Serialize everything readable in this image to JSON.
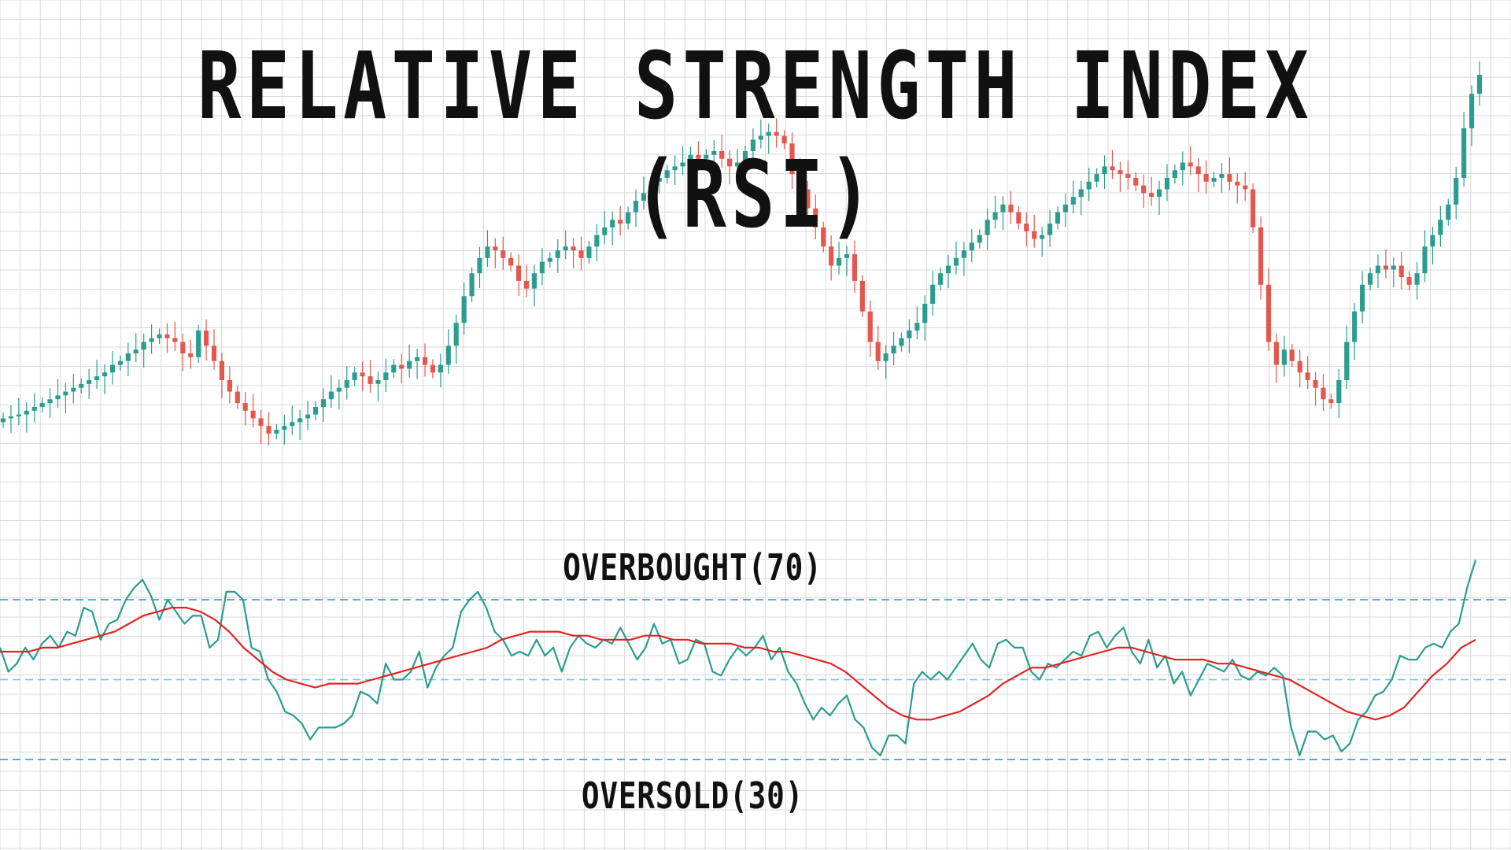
{
  "title": "RELATIVE STRENGTH INDEX (RSI)",
  "labels": {
    "overbought": "OVERBOUGHT(70)",
    "oversold": "OVERSOLD(30)"
  },
  "colors": {
    "background": "#ffffff",
    "grid": "#d9d9d9",
    "bullish": "#2a9d8f",
    "bearish": "#e4574f",
    "rsi_line": "#2a9d8f",
    "rsi_ma_line": "#e02424",
    "band_line": "#3aa6c9",
    "mid_line": "#7cc9e3"
  },
  "chart_data": [
    {
      "type": "candlestick",
      "title": "",
      "price_range": [
        0,
        100
      ],
      "closes": [
        10,
        10.5,
        11,
        12,
        13,
        14,
        15,
        16,
        17,
        18,
        19,
        20,
        21,
        22,
        24,
        25,
        27,
        28,
        30,
        31,
        32,
        31,
        30,
        27,
        26,
        33,
        29,
        25,
        20,
        17,
        14,
        12,
        10,
        8,
        6,
        7,
        8,
        9,
        10,
        11,
        13,
        15,
        17,
        18,
        20,
        22,
        21,
        19,
        20,
        22,
        24,
        23,
        25,
        26,
        24,
        22,
        24,
        29,
        35,
        42,
        48,
        52,
        55,
        54,
        52,
        50,
        46,
        44,
        48,
        51,
        52,
        54,
        55,
        54,
        52,
        55,
        58,
        60,
        62,
        61,
        64,
        67,
        69,
        72,
        73,
        75,
        76,
        77,
        79,
        78,
        79,
        80,
        78,
        76,
        77,
        80,
        83,
        84,
        85,
        84,
        82,
        74,
        70,
        65,
        60,
        55,
        50,
        52,
        53,
        46,
        38,
        30,
        25,
        27,
        29,
        31,
        33,
        35,
        40,
        45,
        48,
        50,
        52,
        54,
        56,
        58,
        62,
        64,
        66,
        64,
        61,
        59,
        57,
        58,
        61,
        64,
        66,
        68,
        70,
        72,
        74,
        76,
        75,
        74,
        73,
        71,
        69,
        68,
        70,
        73,
        75,
        77,
        76,
        74,
        72,
        73,
        74,
        72,
        71,
        70,
        60,
        45,
        30,
        24,
        28,
        25,
        22,
        20,
        18,
        15,
        14,
        20,
        30,
        38,
        45,
        48,
        50,
        49,
        50,
        47,
        45,
        48,
        55,
        58,
        62,
        66,
        73,
        86,
        95,
        100
      ],
      "xlabel": "",
      "ylabel": ""
    },
    {
      "type": "line",
      "title": "",
      "ylim": [
        0,
        100
      ],
      "reference_lines": [
        70,
        50,
        30
      ],
      "series": [
        {
          "values": [
            58,
            52,
            54,
            58,
            55,
            59,
            61,
            58,
            62,
            61,
            68,
            67,
            60,
            64,
            65,
            70,
            73,
            75,
            71,
            65,
            70,
            67,
            64,
            66,
            66,
            58,
            60,
            72,
            72,
            70,
            58,
            57,
            50,
            47,
            42,
            41,
            39,
            35,
            38,
            38,
            38,
            39,
            41,
            47,
            46,
            44,
            54,
            50,
            50,
            52,
            57,
            48,
            53,
            56,
            58,
            67,
            70,
            72,
            68,
            62,
            60,
            56,
            57,
            56,
            60,
            56,
            58,
            52,
            58,
            61,
            59,
            58,
            60,
            59,
            63,
            59,
            55,
            58,
            64,
            59,
            60,
            54,
            55,
            60,
            59,
            52,
            51,
            55,
            58,
            56,
            58,
            61,
            55,
            58,
            52,
            49,
            44,
            40,
            43,
            41,
            44,
            46,
            40,
            38,
            33,
            31,
            36,
            36,
            34,
            49,
            52,
            50,
            52,
            50,
            53,
            56,
            59,
            55,
            53,
            59,
            60,
            58,
            58,
            52,
            50,
            54,
            53,
            55,
            57,
            56,
            61,
            62,
            58,
            61,
            63,
            57,
            54,
            60,
            53,
            56,
            49,
            52,
            46,
            50,
            54,
            53,
            52,
            55,
            51,
            50,
            52,
            51,
            53,
            51,
            38,
            31,
            37,
            37,
            35,
            36,
            32,
            34,
            40,
            42,
            46,
            47,
            50,
            56,
            55,
            55,
            58,
            59,
            58,
            62,
            64,
            73,
            80
          ],
          "name": ""
        },
        {
          "values": [
            57,
            57,
            57,
            58,
            58,
            59,
            60,
            61,
            62,
            64,
            66,
            67,
            68,
            68,
            67,
            65,
            62,
            58,
            55,
            52,
            50,
            49,
            48,
            49,
            49,
            49,
            50,
            51,
            52,
            53,
            54,
            55,
            56,
            57,
            58,
            60,
            61,
            62,
            62,
            62,
            61,
            61,
            60,
            60,
            60,
            61,
            61,
            60,
            60,
            59,
            59,
            59,
            58,
            58,
            57,
            57,
            56,
            55,
            54,
            52,
            49,
            46,
            43,
            41,
            40,
            40,
            41,
            42,
            44,
            46,
            49,
            51,
            53,
            53,
            54,
            55,
            56,
            57,
            58,
            58,
            57,
            56,
            55,
            55,
            55,
            54,
            54,
            53,
            52,
            51,
            50,
            48,
            46,
            44,
            42,
            41,
            40,
            41,
            43,
            47,
            51,
            54,
            58,
            60
          ],
          "name": ""
        }
      ],
      "annotations": [
        "OVERBOUGHT(70)",
        "OVERSOLD(30)"
      ]
    }
  ]
}
